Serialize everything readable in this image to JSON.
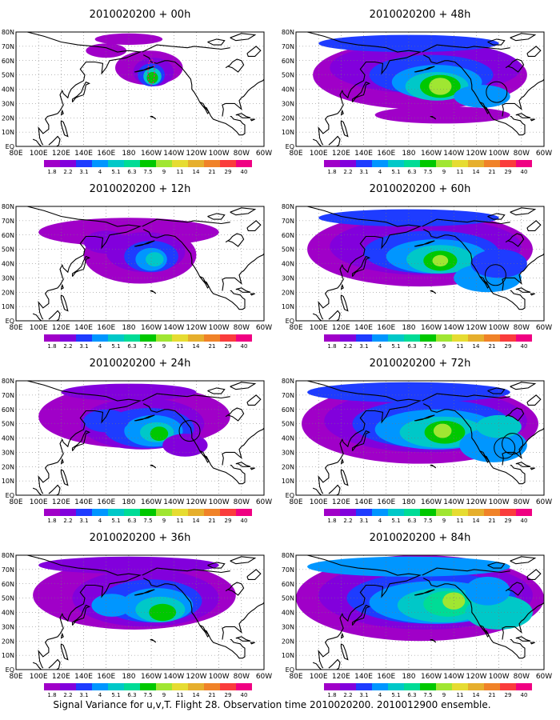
{
  "caption": "Signal Variance for u,v,T. Flight 28. Observation time 2010020200. 2010012900 ensemble.",
  "colorbar": {
    "labels": [
      "1.8",
      "2.2",
      "3.1",
      "4",
      "5.1",
      "6.3",
      "7.5",
      "9",
      "11",
      "14",
      "21",
      "29",
      "40"
    ],
    "colors": [
      "#a000c8",
      "#8200dc",
      "#1e3cff",
      "#0096ff",
      "#00c8c8",
      "#00dc96",
      "#00c800",
      "#a0e632",
      "#e6dc32",
      "#e6af2d",
      "#f08228",
      "#fa3c3c",
      "#f00082"
    ]
  },
  "lon_labels": [
    "80E",
    "100E",
    "120E",
    "140E",
    "160E",
    "180",
    "160W",
    "140W",
    "120W",
    "100W",
    "80W",
    "60W"
  ],
  "lat_labels": [
    "80N",
    "70N",
    "60N",
    "50N",
    "40N",
    "30N",
    "20N",
    "10N",
    "EQ"
  ],
  "panels": [
    {
      "title": "2010020200 + 00h",
      "hour": 0
    },
    {
      "title": "2010020200 + 48h",
      "hour": 48
    },
    {
      "title": "2010020200 + 12h",
      "hour": 12
    },
    {
      "title": "2010020200 + 60h",
      "hour": 60
    },
    {
      "title": "2010020200 + 24h",
      "hour": 24
    },
    {
      "title": "2010020200 + 72h",
      "hour": 72
    },
    {
      "title": "2010020200 + 36h",
      "hour": 36
    },
    {
      "title": "2010020200 + 84h",
      "hour": 84
    }
  ]
}
